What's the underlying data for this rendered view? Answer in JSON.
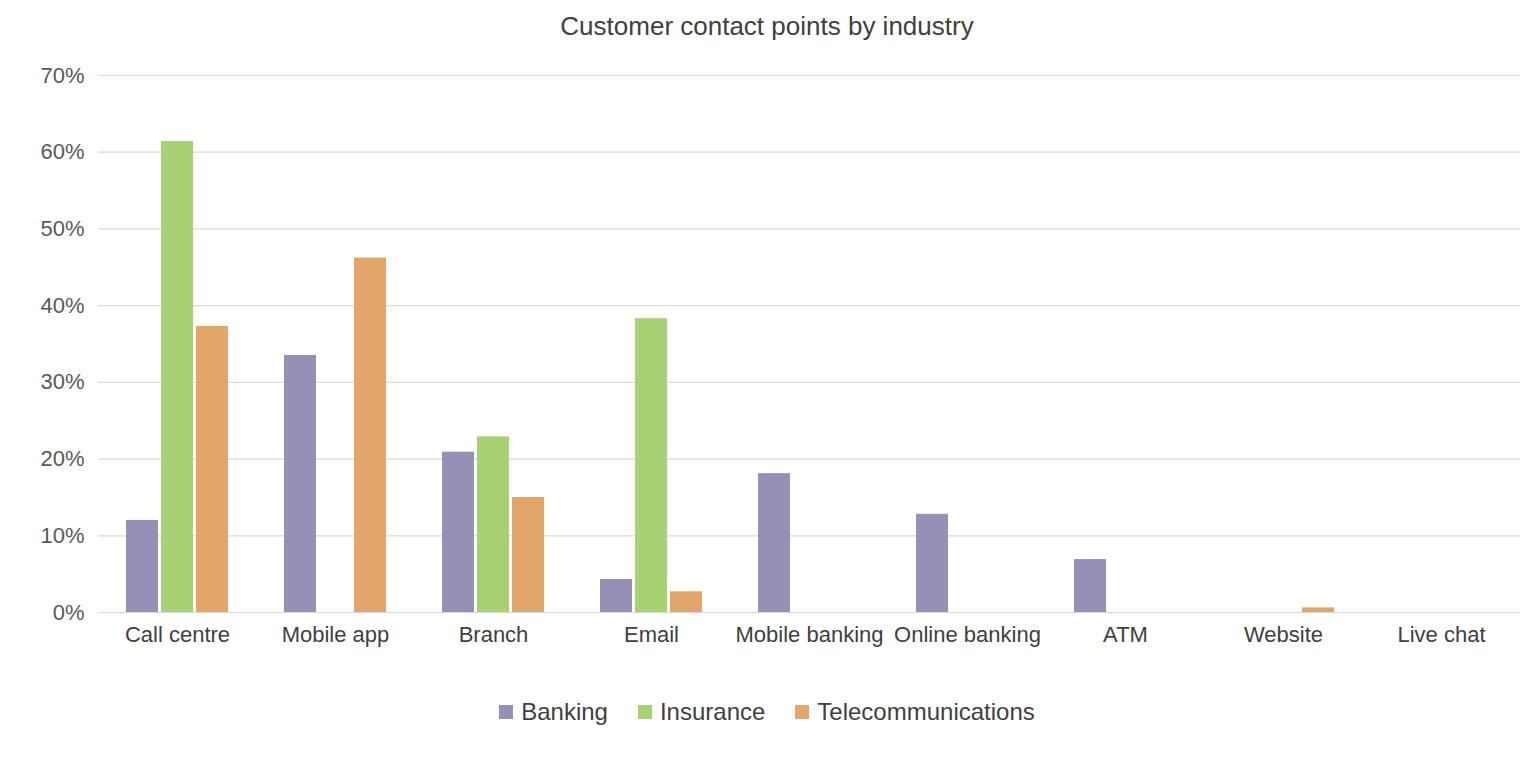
{
  "chart_data": {
    "type": "bar",
    "title": "Customer contact points by industry",
    "categories": [
      "Call centre",
      "Mobile app",
      "Branch",
      "Email",
      "Mobile banking",
      "Online banking",
      "ATM",
      "Website",
      "Live chat"
    ],
    "series": [
      {
        "name": "Banking",
        "color": "#9590b6",
        "values": [
          12.0,
          33.5,
          20.9,
          4.3,
          18.1,
          12.8,
          6.9,
          0,
          0
        ]
      },
      {
        "name": "Insurance",
        "color": "#a8d173",
        "values": [
          61.4,
          0,
          22.9,
          38.3,
          0,
          0,
          0,
          0,
          0
        ]
      },
      {
        "name": "Telecommunications",
        "color": "#e1a668",
        "values": [
          37.3,
          46.2,
          15.0,
          2.7,
          0,
          0,
          0,
          0.6,
          0
        ]
      }
    ],
    "ylim": [
      0,
      70
    ],
    "yticks": [
      {
        "value": 0,
        "label": "0%"
      },
      {
        "value": 10,
        "label": "10%"
      },
      {
        "value": 20,
        "label": "20%"
      },
      {
        "value": 30,
        "label": "30%"
      },
      {
        "value": 40,
        "label": "40%"
      },
      {
        "value": 50,
        "label": "50%"
      },
      {
        "value": 60,
        "label": "60%"
      },
      {
        "value": 70,
        "label": "70%"
      }
    ],
    "grid": true,
    "legend": "bottom"
  }
}
